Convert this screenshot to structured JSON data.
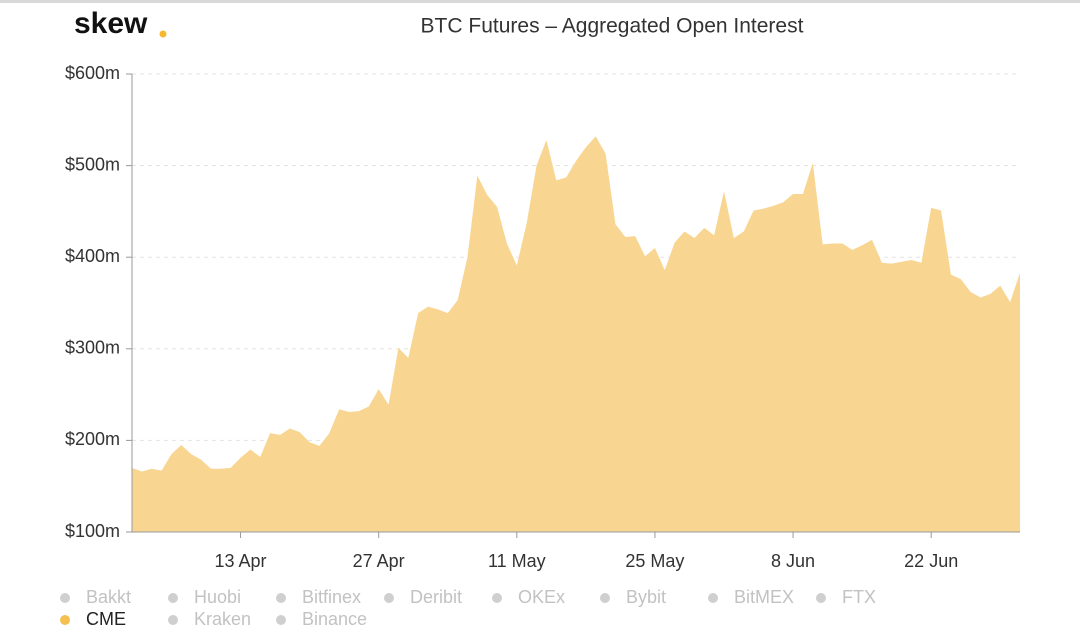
{
  "chart_data": {
    "type": "area",
    "brand": "skew",
    "title": "BTC Futures – Aggregated Open Interest",
    "x": [
      93,
      94,
      95,
      96,
      97,
      98,
      99,
      100,
      101,
      102,
      103,
      104,
      105,
      106,
      107,
      108,
      109,
      110,
      111,
      112,
      113,
      114,
      115,
      116,
      117,
      118,
      119,
      120,
      121,
      122,
      123,
      124,
      125,
      126,
      127,
      128,
      129,
      130,
      131,
      132,
      133,
      134,
      135,
      136,
      137,
      138,
      139,
      140,
      141,
      142,
      143,
      144,
      145,
      146,
      147,
      148,
      149,
      150,
      151,
      152,
      153,
      154,
      155,
      156,
      157,
      158,
      159,
      160,
      161,
      162,
      163,
      164,
      165,
      166,
      167,
      168,
      169,
      170,
      171,
      172,
      173,
      174,
      175,
      176,
      177,
      178,
      179,
      180,
      181,
      182,
      183
    ],
    "series": [
      {
        "name": "CME",
        "color": "#f8d692",
        "values": [
          170,
          166,
          169,
          167,
          185,
          195,
          185,
          179,
          169,
          169,
          170,
          181,
          190,
          182,
          208,
          206,
          213,
          209,
          198,
          194,
          208,
          234,
          231,
          232,
          237,
          256,
          239,
          301,
          290,
          339,
          346,
          343,
          339,
          353,
          400,
          489,
          468,
          455,
          415,
          391,
          437,
          500,
          528,
          484,
          487,
          505,
          520,
          532,
          513,
          436,
          422,
          423,
          401,
          410,
          386,
          416,
          428,
          421,
          432,
          424,
          472,
          421,
          428,
          451,
          453,
          456,
          460,
          469,
          469,
          503,
          414,
          415,
          415,
          408,
          413,
          419,
          394,
          393,
          395,
          397,
          394,
          454,
          451,
          381,
          376,
          362,
          356,
          360,
          369,
          351,
          383
        ]
      }
    ],
    "xlim": [
      93,
      183
    ],
    "xticks": [
      {
        "value": 104,
        "label": "13 Apr"
      },
      {
        "value": 118,
        "label": "27 Apr"
      },
      {
        "value": 132,
        "label": "11 May"
      },
      {
        "value": 146,
        "label": "25 May"
      },
      {
        "value": 160,
        "label": "8 Jun"
      },
      {
        "value": 174,
        "label": "22 Jun"
      }
    ],
    "ylim": [
      100,
      600
    ],
    "yticks": [
      {
        "value": 100,
        "label": "$100m"
      },
      {
        "value": 200,
        "label": "$200m"
      },
      {
        "value": 300,
        "label": "$300m"
      },
      {
        "value": 400,
        "label": "$400m"
      },
      {
        "value": 500,
        "label": "$500m"
      },
      {
        "value": 600,
        "label": "$600m"
      }
    ],
    "grid": true,
    "legend": {
      "position": "bottom-left",
      "items": [
        {
          "name": "Bakkt",
          "active": false
        },
        {
          "name": "Huobi",
          "active": false
        },
        {
          "name": "Bitfinex",
          "active": false
        },
        {
          "name": "Deribit",
          "active": false
        },
        {
          "name": "OKEx",
          "active": false
        },
        {
          "name": "Bybit",
          "active": false
        },
        {
          "name": "BitMEX",
          "active": false
        },
        {
          "name": "FTX",
          "active": false
        },
        {
          "name": "CME",
          "active": true
        },
        {
          "name": "Kraken",
          "active": false
        },
        {
          "name": "Binance",
          "active": false
        }
      ]
    }
  }
}
